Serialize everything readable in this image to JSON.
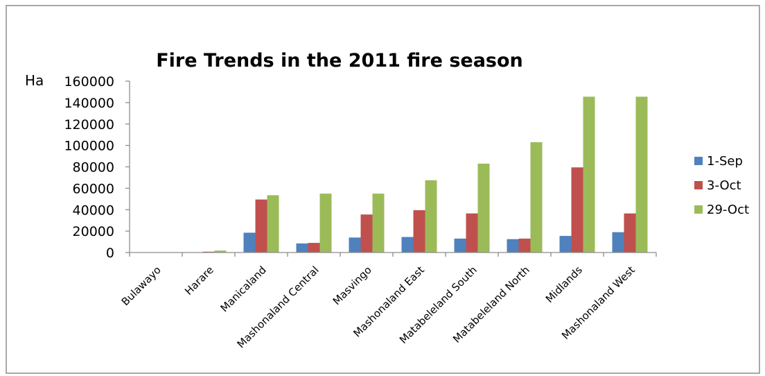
{
  "chart_data": {
    "type": "bar",
    "title": "Fire Trends in the 2011 fire season",
    "ylabel": "Ha",
    "xlabel": "",
    "ylim": [
      0,
      160000
    ],
    "yticks": [
      0,
      20000,
      40000,
      60000,
      80000,
      100000,
      120000,
      140000,
      160000
    ],
    "grid": false,
    "legend_position": "right",
    "categories": [
      "Bulawayo",
      "Harare",
      "Manicaland",
      "Mashonaland Central",
      "Masvingo",
      "Mashonaland East",
      "Matabeleland South",
      "Matabeleland North",
      "Midlands",
      "Mashonaland West"
    ],
    "series": [
      {
        "name": "1-Sep",
        "color": "#4f81bd",
        "values": [
          0,
          0,
          18500,
          8500,
          14000,
          14500,
          13000,
          12500,
          15500,
          19000
        ]
      },
      {
        "name": "3-Oct",
        "color": "#c0504d",
        "values": [
          0,
          800,
          49500,
          9000,
          35500,
          39500,
          36500,
          13000,
          79500,
          36500
        ]
      },
      {
        "name": "29-Oct",
        "color": "#9bbb59",
        "values": [
          0,
          1800,
          53500,
          55000,
          55000,
          67500,
          83000,
          103000,
          145500,
          145500
        ]
      }
    ]
  }
}
